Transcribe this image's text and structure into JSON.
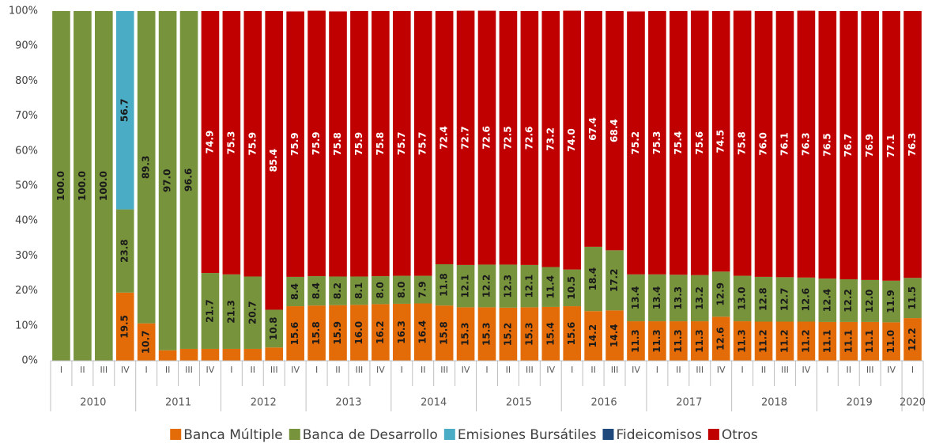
{
  "chart_data": {
    "type": "stacked_bar",
    "categories": [
      "I",
      "II",
      "III",
      "IV",
      "I",
      "II",
      "III",
      "IV",
      "I",
      "II",
      "III",
      "IV",
      "I",
      "II",
      "III",
      "IV",
      "I",
      "II",
      "III",
      "IV",
      "I",
      "II",
      "III",
      "IV",
      "I",
      "II",
      "III",
      "IV",
      "I",
      "II",
      "III",
      "IV",
      "I",
      "II",
      "III",
      "IV",
      "I",
      "II",
      "III",
      "IV",
      "I"
    ],
    "years": [
      "2010",
      "2011",
      "2012",
      "2013",
      "2014",
      "2015",
      "2016",
      "2017",
      "2018",
      "2019",
      "2020"
    ],
    "ylim": [
      0,
      100
    ],
    "yticks": [
      {
        "value": 0,
        "label": "0%"
      },
      {
        "value": 10,
        "label": "10%"
      },
      {
        "value": 20,
        "label": "20%"
      },
      {
        "value": 30,
        "label": "30%"
      },
      {
        "value": 40,
        "label": "40%"
      },
      {
        "value": 50,
        "label": "50%"
      },
      {
        "value": 60,
        "label": "60%"
      },
      {
        "value": 70,
        "label": "70%"
      },
      {
        "value": 80,
        "label": "80%"
      },
      {
        "value": 90,
        "label": "90%"
      },
      {
        "value": 100,
        "label": "100%"
      }
    ],
    "grid": false,
    "legend": "bottom",
    "series": [
      {
        "name": "Banca Múltiple",
        "color": "#E36C09",
        "values": [
          0,
          0,
          0,
          19.5,
          10.7,
          3.0,
          3.4,
          3.4,
          3.4,
          3.4,
          3.8,
          15.6,
          15.8,
          15.9,
          16.0,
          16.2,
          16.3,
          16.4,
          15.8,
          15.3,
          15.3,
          15.2,
          15.3,
          15.4,
          15.6,
          14.2,
          14.4,
          11.3,
          11.3,
          11.3,
          11.3,
          12.6,
          11.3,
          11.2,
          11.2,
          11.2,
          11.1,
          11.1,
          11.1,
          11.0,
          12.2
        ],
        "value_labels": [
          null,
          null,
          null,
          "19.5",
          "10.7",
          null,
          null,
          null,
          null,
          null,
          null,
          "15.6",
          "15.8",
          "15.9",
          "16.0",
          "16.2",
          "16.3",
          "16.4",
          "15.8",
          "15.3",
          "15.3",
          "15.2",
          "15.3",
          "15.4",
          "15.6",
          "14.2",
          "14.4",
          "11.3",
          "11.3",
          "11.3",
          "11.3",
          "12.6",
          "11.3",
          "11.2",
          "11.2",
          "11.2",
          "11.1",
          "11.1",
          "11.1",
          "11.0",
          "12.2"
        ]
      },
      {
        "name": "Banca de Desarrollo",
        "color": "#77933C",
        "values": [
          100,
          100,
          100,
          23.8,
          89.3,
          97.0,
          96.6,
          21.7,
          21.3,
          20.7,
          10.8,
          8.4,
          8.4,
          8.2,
          8.1,
          8.0,
          8.0,
          7.9,
          11.8,
          12.1,
          12.2,
          12.3,
          12.1,
          11.4,
          10.5,
          18.4,
          17.2,
          13.4,
          13.4,
          13.3,
          13.2,
          12.9,
          13.0,
          12.8,
          12.7,
          12.6,
          12.4,
          12.2,
          12.0,
          11.9,
          11.5
        ],
        "value_labels": [
          "100.0",
          "100.0",
          "100.0",
          "23.8",
          "89.3",
          "97.0",
          "96.6",
          "21.7",
          "21.3",
          "20.7",
          "10.8",
          "8.4",
          "8.4",
          "8.2",
          "8.1",
          "8.0",
          "8.0",
          "7.9",
          "11.8",
          "12.1",
          "12.2",
          "12.3",
          "12.1",
          "11.4",
          "10.5",
          "18.4",
          "17.2",
          "13.4",
          "13.4",
          "13.3",
          "13.2",
          "12.9",
          "13.0",
          "12.8",
          "12.7",
          "12.6",
          "12.4",
          "12.2",
          "12.0",
          "11.9",
          "11.5"
        ]
      },
      {
        "name": "Emisiones Bursátiles",
        "color": "#4BACC6",
        "values": [
          0,
          0,
          0,
          56.7,
          0,
          0,
          0,
          0,
          0,
          0,
          0,
          0,
          0,
          0,
          0,
          0,
          0,
          0,
          0,
          0,
          0,
          0,
          0,
          0,
          0,
          0,
          0,
          0,
          0,
          0,
          0,
          0,
          0,
          0,
          0,
          0,
          0,
          0,
          0,
          0,
          0
        ],
        "value_labels": [
          null,
          null,
          null,
          "56.7",
          null,
          null,
          null,
          null,
          null,
          null,
          null,
          null,
          null,
          null,
          null,
          null,
          null,
          null,
          null,
          null,
          null,
          null,
          null,
          null,
          null,
          null,
          null,
          null,
          null,
          null,
          null,
          null,
          null,
          null,
          null,
          null,
          null,
          null,
          null,
          null,
          null
        ]
      },
      {
        "name": "Fideicomisos",
        "color": "#1F497D",
        "values": [
          0,
          0,
          0,
          0,
          0,
          0,
          0,
          0,
          0,
          0,
          0,
          0,
          0,
          0,
          0,
          0,
          0,
          0,
          0,
          0,
          0,
          0,
          0,
          0,
          0,
          0,
          0,
          0,
          0,
          0,
          0,
          0,
          0,
          0,
          0,
          0,
          0,
          0,
          0,
          0,
          0
        ]
      },
      {
        "name": "Otros",
        "color": "#C00000",
        "values": [
          0,
          0,
          0,
          0,
          0,
          0,
          0,
          74.9,
          75.3,
          75.9,
          85.4,
          75.9,
          75.9,
          75.8,
          75.9,
          75.8,
          75.7,
          75.7,
          72.4,
          72.7,
          72.6,
          72.5,
          72.6,
          73.2,
          74.0,
          67.4,
          68.4,
          75.2,
          75.3,
          75.4,
          75.6,
          74.5,
          75.8,
          76.0,
          76.1,
          76.3,
          76.5,
          76.7,
          76.9,
          77.1,
          76.3
        ],
        "value_labels": [
          null,
          null,
          null,
          null,
          null,
          null,
          null,
          "74.9",
          "75.3",
          "75.9",
          "85.4",
          "75.9",
          "75.9",
          "75.8",
          "75.9",
          "75.8",
          "75.7",
          "75.7",
          "72.4",
          "72.7",
          "72.6",
          "72.5",
          "72.6",
          "73.2",
          "74.0",
          "67.4",
          "68.4",
          "75.2",
          "75.3",
          "75.4",
          "75.6",
          "74.5",
          "75.8",
          "76.0",
          "76.1",
          "76.3",
          "76.5",
          "76.7",
          "76.9",
          "77.1",
          "76.3"
        ]
      }
    ]
  }
}
